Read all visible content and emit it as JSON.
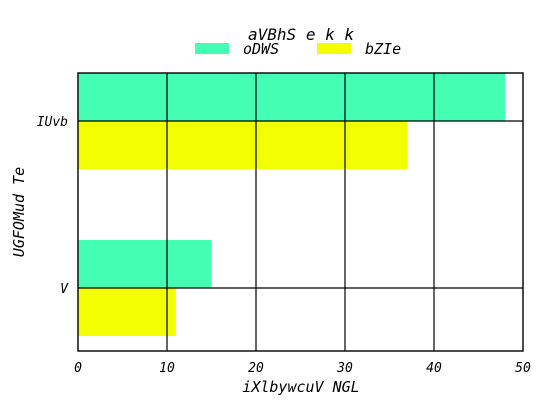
{
  "chart_data": {
    "type": "bar",
    "orientation": "horizontal",
    "title": "aVBhS e  k k",
    "xlabel": "iXlbywcuV NGL",
    "ylabel": "UGFOMud Te",
    "categories": [
      "IUvb",
      "V"
    ],
    "series": [
      {
        "name": "oDWS",
        "values": [
          48,
          15
        ],
        "color": "#44ffb3"
      },
      {
        "name": "bZIe",
        "values": [
          37,
          11
        ],
        "color": "#f3ff00"
      }
    ],
    "xlim": [
      0,
      50
    ],
    "xticks": [
      0,
      10,
      20,
      30,
      40,
      50
    ],
    "grid": true,
    "legend_position": "top-center"
  }
}
